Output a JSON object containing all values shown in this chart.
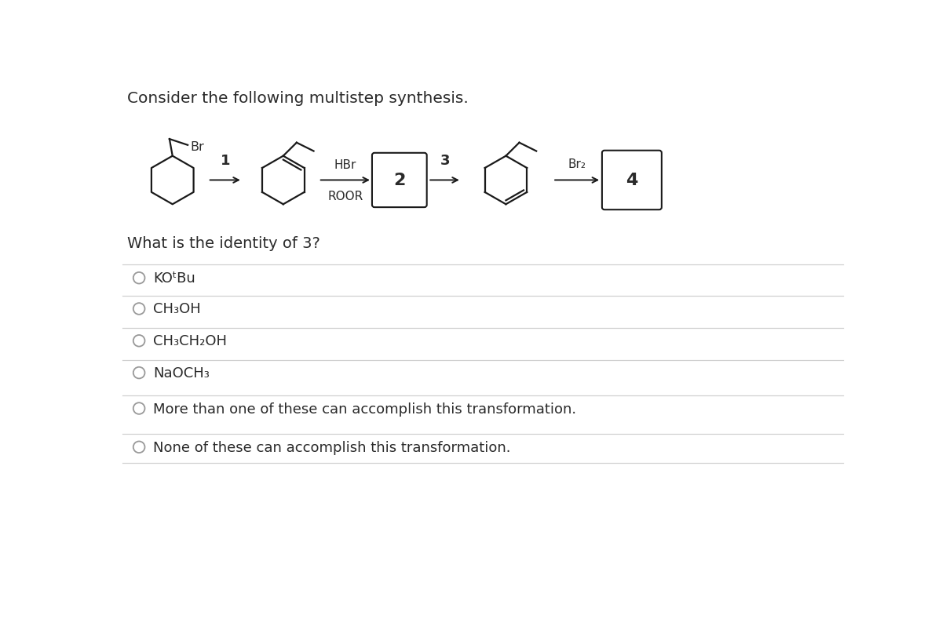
{
  "title": "Consider the following multistep synthesis.",
  "question": "What is the identity of 3?",
  "bg_color": "#ffffff",
  "text_color": "#2a2a2a",
  "options": [
    "KOᵗBu",
    "CH₃OH",
    "CH₃CH₂OH",
    "NaOCH₃",
    "More than one of these can accomplish this transformation.",
    "None of these can accomplish this transformation."
  ],
  "line_color": "#d0d0d0",
  "arrow_color": "#1a1a1a",
  "molecule_color": "#1a1a1a",
  "box_color": "#1a1a1a",
  "mol_lw": 1.6,
  "arrow_lw": 1.4
}
